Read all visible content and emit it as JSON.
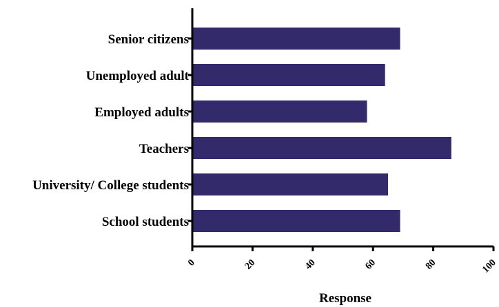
{
  "chart_data": {
    "type": "bar",
    "orientation": "horizontal",
    "categories": [
      "Senior citizens",
      "Unemployed adult",
      "Employed adults",
      "Teachers",
      "University/ College students",
      "School students"
    ],
    "values": [
      69,
      64,
      58,
      86,
      65,
      69
    ],
    "xlabel": "Response",
    "ylabel": "",
    "xlim": [
      0,
      100
    ],
    "xticks": [
      0,
      20,
      40,
      60,
      80,
      100
    ],
    "bar_color": "#332a6b",
    "grid": false
  }
}
